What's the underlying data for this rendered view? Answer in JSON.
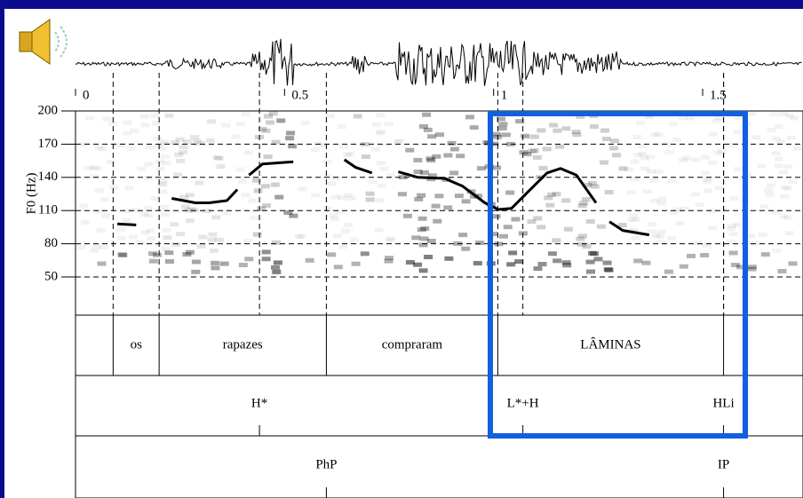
{
  "chart_data": {
    "type": "line",
    "ylabel": "F0 (Hz)",
    "xlim": [
      0,
      1.74
    ],
    "xticks": [
      0,
      0.5,
      1,
      1.5
    ],
    "ylim": [
      50,
      200
    ],
    "yticks": [
      50,
      80,
      110,
      140,
      170,
      200
    ],
    "grid": true,
    "series": [
      {
        "color": "#000000",
        "x": [
          0.1,
          0.145,
          null,
          0.23,
          0.287,
          0.319,
          0.362,
          0.387,
          null,
          0.415,
          0.447,
          0.521,
          null,
          0.643,
          0.67,
          0.709,
          null,
          0.772,
          0.819,
          0.883,
          0.926,
          0.979,
          1.011,
          1.043,
          1.085,
          1.128,
          1.16,
          1.198,
          1.245,
          null,
          1.277,
          1.309,
          1.372
        ],
        "values": [
          98,
          97,
          null,
          121,
          117,
          117,
          119,
          129,
          null,
          142,
          152,
          154,
          null,
          156,
          149,
          144,
          null,
          145,
          140,
          139,
          132,
          117,
          111,
          112,
          128,
          144,
          148,
          142,
          117,
          null,
          100,
          92,
          88
        ]
      }
    ],
    "tiers": [
      {
        "boundaries": [
          0.09,
          0.2,
          0.6,
          1.01,
          1.55
        ],
        "labels": [
          "os",
          "rapazes",
          "compraram",
          "LÂMINAS"
        ]
      },
      {
        "points": [
          0.44,
          1.07,
          1.55
        ],
        "labels": [
          "H*",
          "L*+H",
          "HLi"
        ]
      },
      {
        "points": [
          0.6,
          1.55
        ],
        "labels": [
          "PhP",
          "IP"
        ]
      }
    ]
  }
}
